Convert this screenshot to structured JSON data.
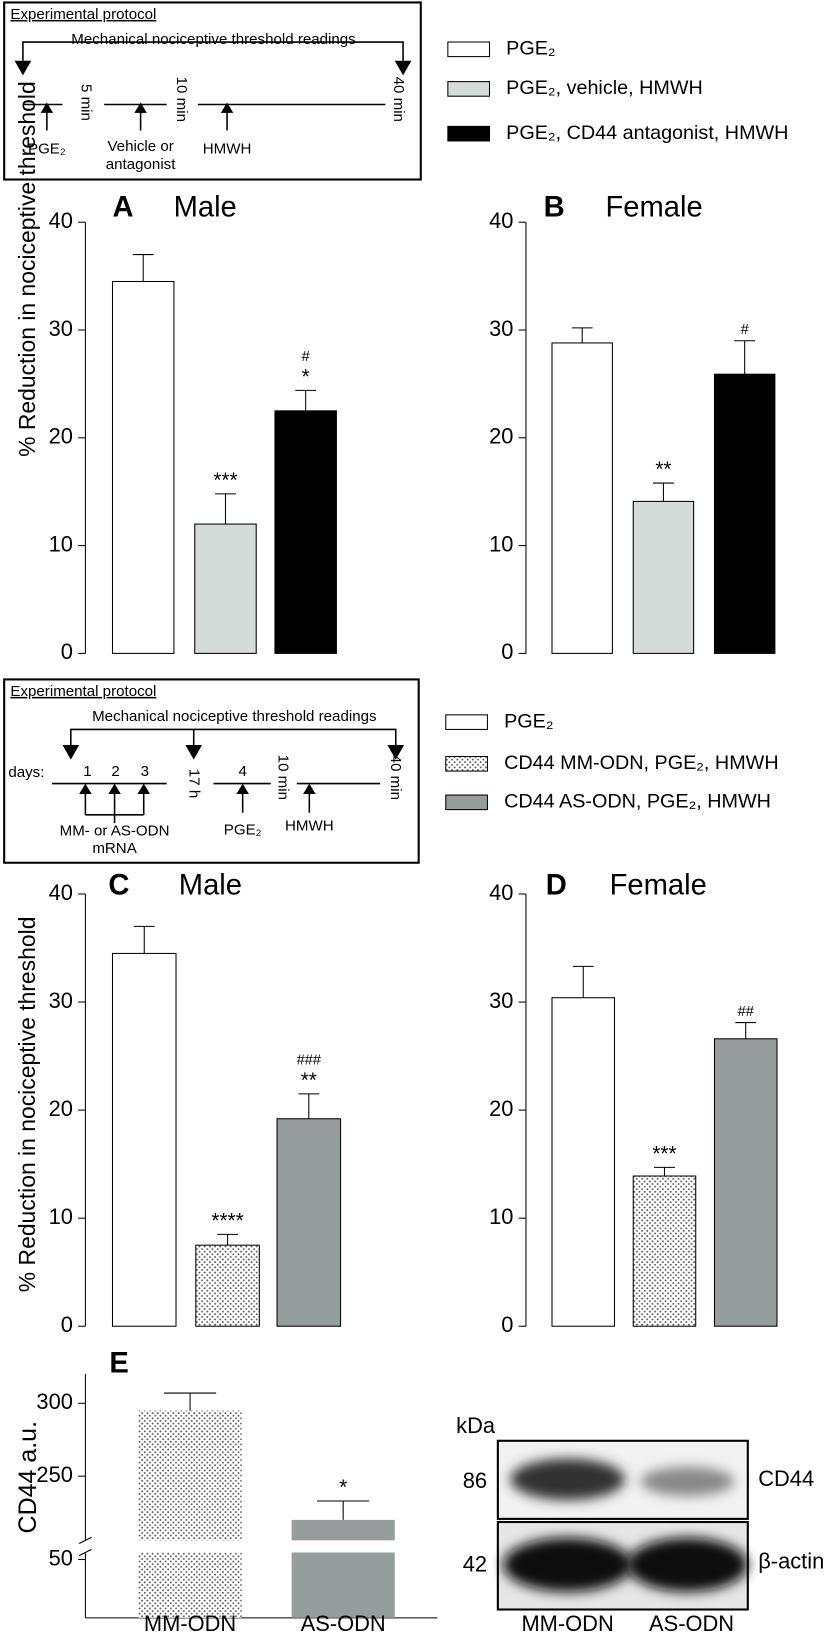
{
  "protocols": [
    {
      "title": "Experimental protocol",
      "readings": "Mechanical nociceptive threshold readings",
      "t1": "5 min",
      "t2": "10 min",
      "t3": "40 min",
      "step1": "PGE₂",
      "step2a": "Vehicle or",
      "step2b": "antagonist",
      "step3": "HMWH"
    },
    {
      "title": "Experimental protocol",
      "readings": "Mechanical nociceptive threshold readings",
      "days": "days:",
      "d1": "1",
      "d2": "2",
      "d3": "3",
      "t0": "17 h",
      "d4": "4",
      "t1": "10 min",
      "t2": "40 min",
      "step1a": "MM- or AS-ODN",
      "step1b": "mRNA",
      "step2": "PGE₂",
      "step3": "HMWH"
    }
  ],
  "legends": [
    [
      {
        "label": "PGE₂",
        "fill": "#ffffff",
        "hatch": null
      },
      {
        "label": "PGE₂, vehicle, HMWH",
        "fill": "#d5dbd9",
        "hatch": null
      },
      {
        "label": "PGE₂, CD44 antagonist, HMWH",
        "fill": "#000000",
        "hatch": null
      }
    ],
    [
      {
        "label": "PGE₂",
        "fill": "#ffffff",
        "hatch": null
      },
      {
        "label": "CD44 MM-ODN, PGE₂, HMWH",
        "fill": "#ffffff",
        "hatch": "dots"
      },
      {
        "label": "CD44 AS-ODN, PGE₂, HMWH",
        "fill": "#959e9c",
        "hatch": null
      }
    ]
  ],
  "chart_data": [
    {
      "type": "bar",
      "panel": "A",
      "title": "Male",
      "ylabel": "% Reduction in nociceptive threshold",
      "values": [
        34.5,
        12,
        22.5
      ],
      "errors": [
        2.5,
        2.8,
        1.9
      ],
      "colors": [
        "#ffffff",
        "#d5dbd9",
        "#000000"
      ],
      "hatch": [
        null,
        null,
        null
      ],
      "significance": [
        null,
        "***",
        "*"
      ],
      "significance2": [
        null,
        null,
        "#"
      ],
      "ylim": [
        0,
        40
      ],
      "yticks": [
        0,
        10,
        20,
        30,
        40
      ]
    },
    {
      "type": "bar",
      "panel": "B",
      "title": "Female",
      "values": [
        28.8,
        14.1,
        25.9
      ],
      "errors": [
        1.4,
        1.7,
        3.1
      ],
      "colors": [
        "#ffffff",
        "#d5dbd9",
        "#000000"
      ],
      "hatch": [
        null,
        null,
        null
      ],
      "significance": [
        null,
        "**",
        null
      ],
      "significance2": [
        null,
        null,
        "#"
      ],
      "ylim": [
        0,
        40
      ],
      "yticks": [
        0,
        10,
        20,
        30,
        40
      ]
    },
    {
      "type": "bar",
      "panel": "C",
      "title": "Male",
      "ylabel": "% Reduction in nociceptive threshold",
      "values": [
        34.5,
        7.5,
        19.2
      ],
      "errors": [
        2.5,
        1.0,
        2.3
      ],
      "colors": [
        "#ffffff",
        "#ffffff",
        "#959e9c"
      ],
      "hatch": [
        null,
        "dots",
        null
      ],
      "significance": [
        null,
        "****",
        "**"
      ],
      "significance2": [
        null,
        null,
        "###"
      ],
      "ylim": [
        0,
        40
      ],
      "yticks": [
        0,
        10,
        20,
        30,
        40
      ]
    },
    {
      "type": "bar",
      "panel": "D",
      "title": "Female",
      "values": [
        30.4,
        13.9,
        26.6
      ],
      "errors": [
        2.9,
        0.8,
        1.5
      ],
      "colors": [
        "#ffffff",
        "#ffffff",
        "#959e9c"
      ],
      "hatch": [
        null,
        "dots",
        null
      ],
      "significance": [
        null,
        "***",
        null
      ],
      "significance2": [
        null,
        null,
        "##"
      ],
      "ylim": [
        0,
        40
      ],
      "yticks": [
        0,
        10,
        20,
        30,
        40
      ]
    },
    {
      "type": "broken_bar",
      "panel": "E",
      "ylabel": "CD44 a.u.",
      "categories": [
        "MM-ODN",
        "AS-ODN"
      ],
      "values": [
        295,
        220
      ],
      "errors": [
        12,
        13
      ],
      "colors": [
        "#ffffff",
        "#959e9c"
      ],
      "hatch": [
        "dots",
        null
      ],
      "significance": [
        null,
        "*"
      ],
      "ylim": [
        0,
        320
      ],
      "ybreak": [
        56,
        206
      ],
      "yticks": [
        50,
        250,
        300
      ]
    }
  ],
  "blot": {
    "unit": "kDa",
    "mw": [
      "86",
      "42"
    ],
    "bands": [
      "CD44",
      "β-actin"
    ],
    "lanes": [
      "MM-ODN",
      "AS-ODN"
    ]
  }
}
